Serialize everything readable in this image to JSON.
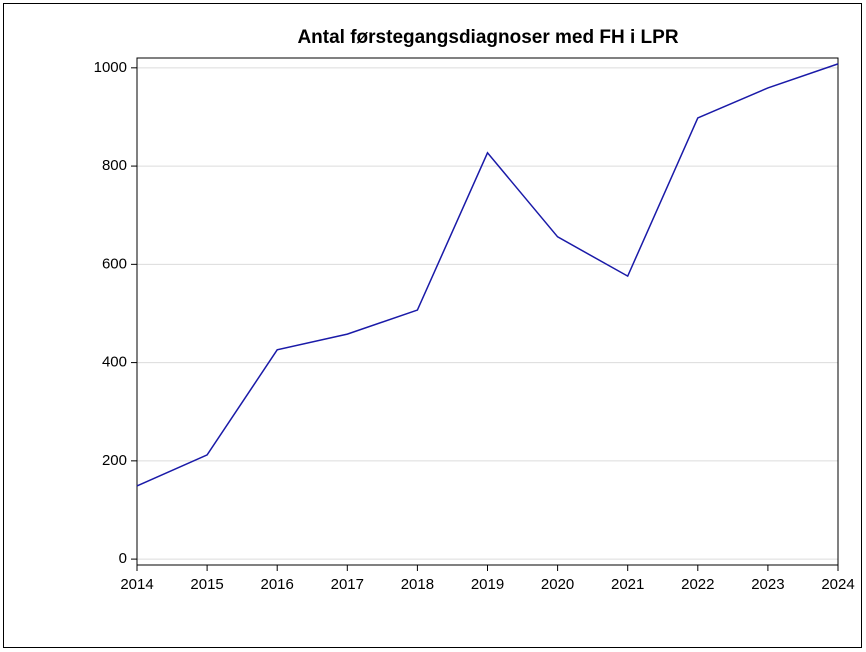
{
  "chart_data": {
    "type": "line",
    "title": "Antal førstegangsdiagnoser med FH i LPR",
    "x": [
      2014,
      2015,
      2016,
      2017,
      2018,
      2019,
      2020,
      2021,
      2022,
      2023,
      2024
    ],
    "series": [
      {
        "name": "Antal",
        "color": "#1a1aa8",
        "values": [
          149,
          212,
          426,
          458,
          507,
          827,
          656,
          576,
          898,
          959,
          1008
        ]
      }
    ],
    "xlim": [
      2014,
      2024
    ],
    "xticks": [
      2014,
      2015,
      2016,
      2017,
      2018,
      2019,
      2020,
      2021,
      2022,
      2023,
      2024
    ],
    "ylim": [
      -12,
      1020
    ],
    "yticks": [
      0,
      200,
      400,
      600,
      800,
      1000
    ],
    "grid": true
  }
}
